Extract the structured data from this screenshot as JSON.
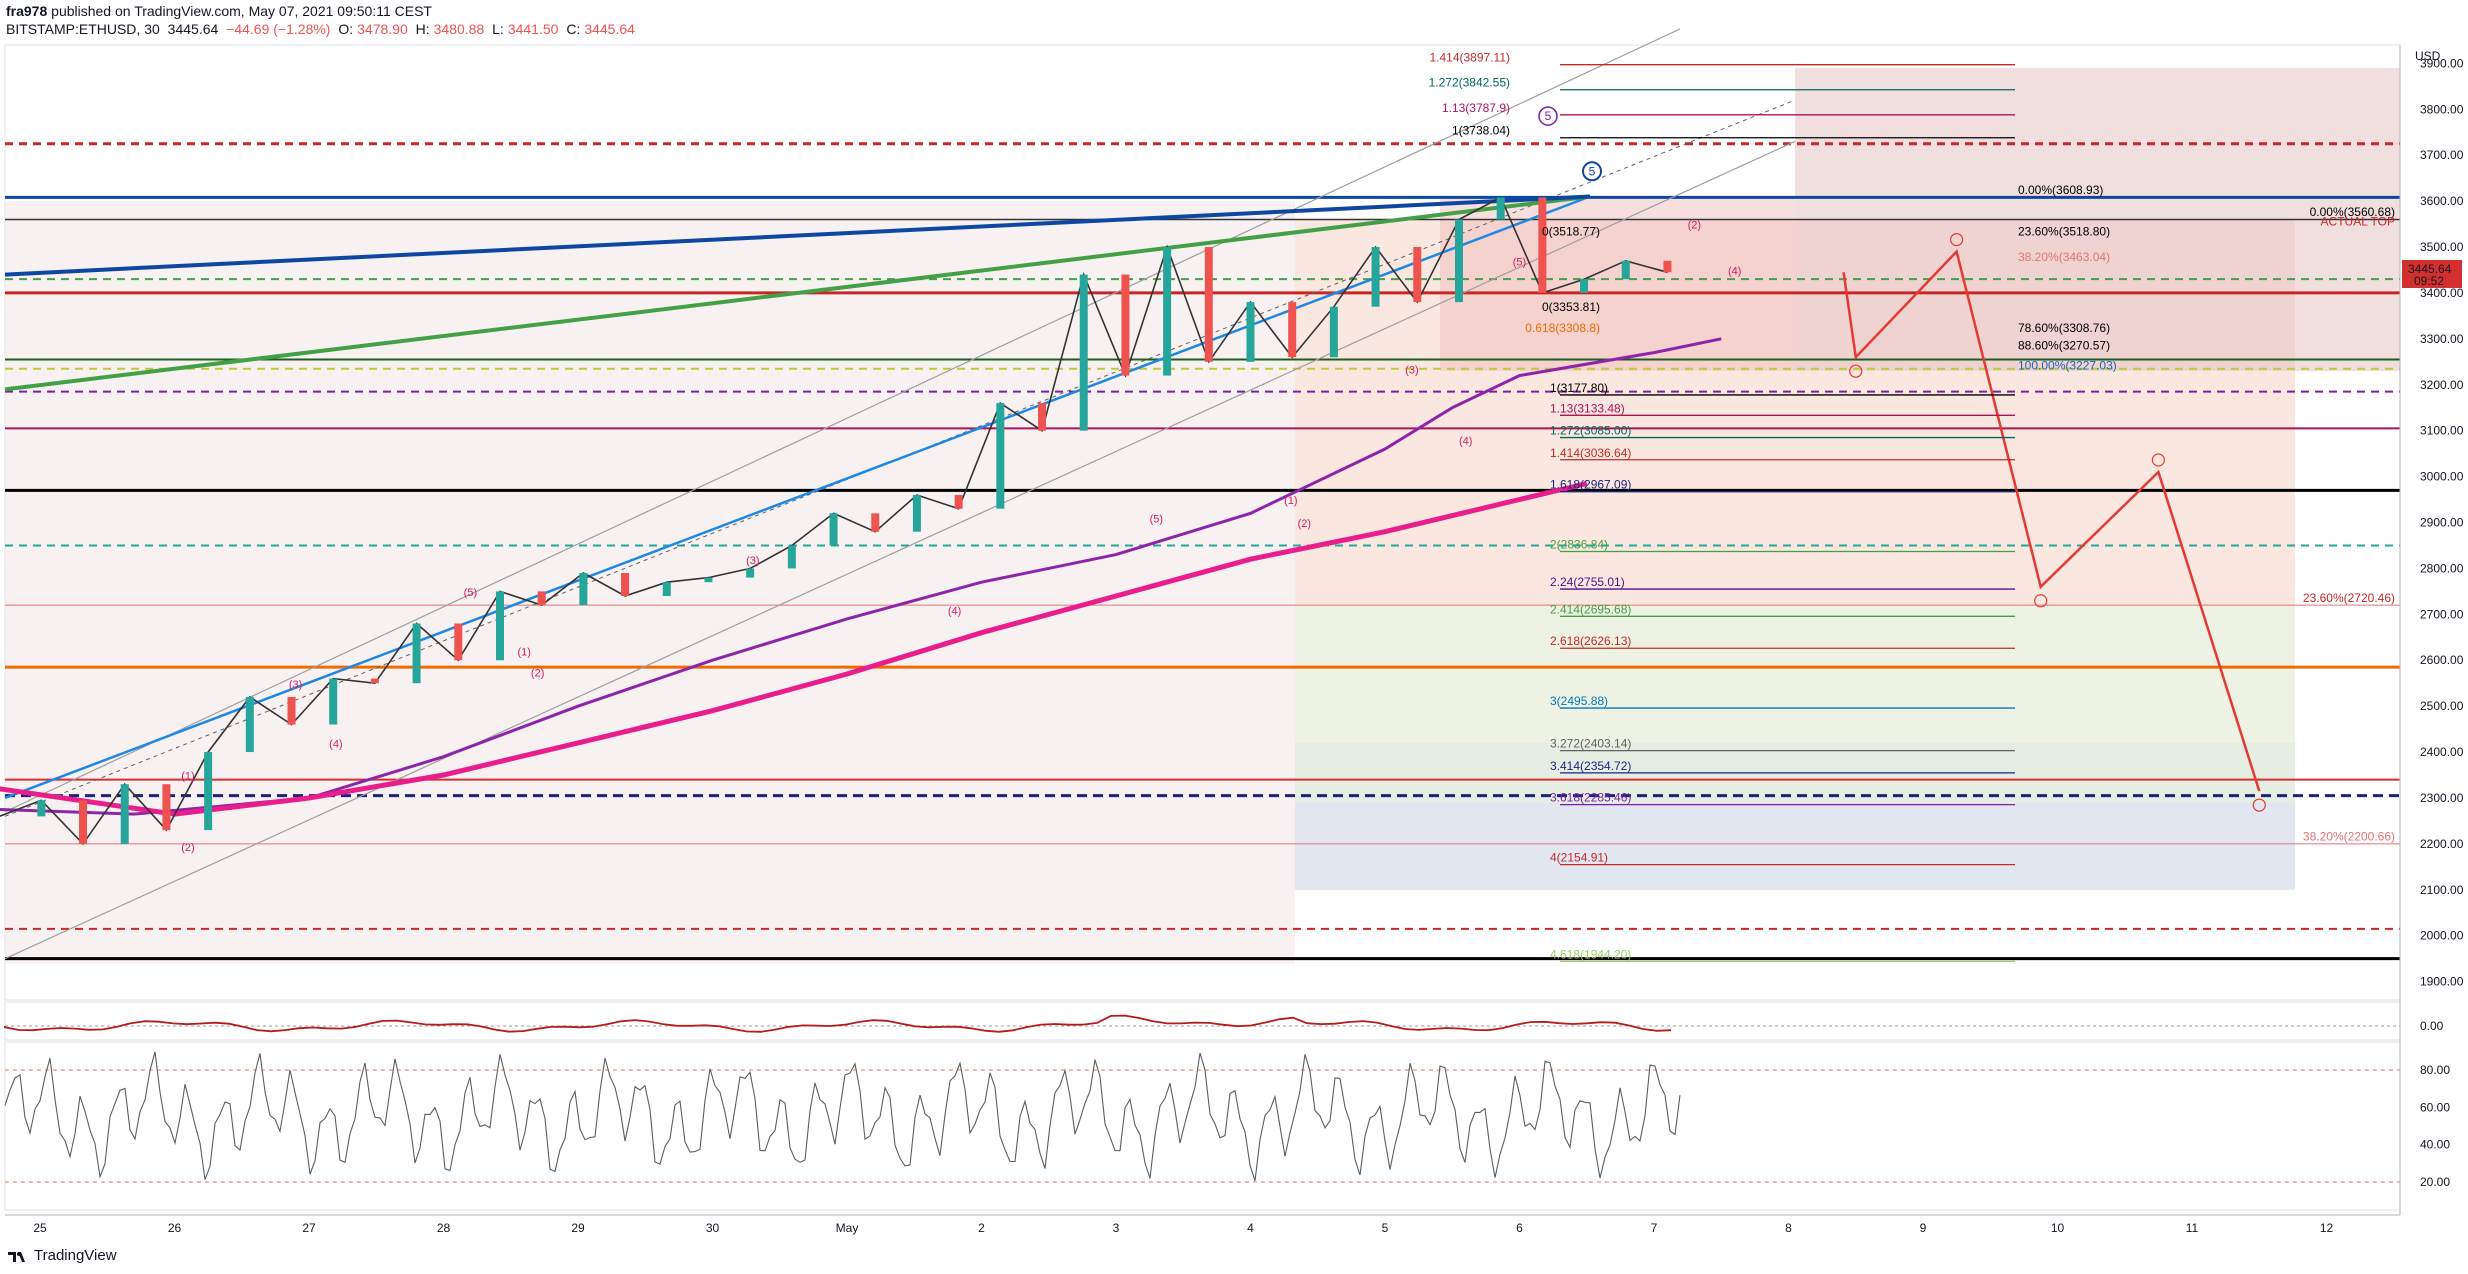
{
  "header": {
    "user": "fra978",
    "published": "published on TradingView.com, May 07, 2021 09:50:11 CEST",
    "symbol": "BITSTAMP:ETHUSD, 30",
    "last": "3445.64",
    "change": "−44.69 (−1.28%)",
    "o_label": "O:",
    "o_val": "3478.90",
    "h_label": "H:",
    "h_val": "3480.88",
    "l_label": "L:",
    "l_val": "3441.50",
    "c_label": "C:",
    "c_val": "3445.64"
  },
  "footer": {
    "logo_text": "TradingView"
  },
  "price_axis": {
    "currency": "USD",
    "current_price": "3445.64",
    "countdown": "09:52",
    "ticks": [
      "3900.00",
      "3800.00",
      "3700.00",
      "3600.00",
      "3500.00",
      "3400.00",
      "3300.00",
      "3200.00",
      "3100.00",
      "3000.00",
      "2900.00",
      "2800.00",
      "2700.00",
      "2600.00",
      "2500.00",
      "2400.00",
      "2300.00",
      "2200.00",
      "2100.00",
      "2000.00",
      "1900.00"
    ]
  },
  "osc_axis": {
    "macd_ticks": [
      "0.00"
    ],
    "rsi_ticks": [
      "80.00",
      "60.00",
      "40.00",
      "20.00"
    ]
  },
  "time_axis": {
    "labels": [
      "25",
      "26",
      "27",
      "28",
      "29",
      "30",
      "May",
      "2",
      "3",
      "4",
      "5",
      "6",
      "7",
      "8",
      "9",
      "10",
      "11",
      "12"
    ]
  },
  "colors": {
    "bull": "#26a69a",
    "bear": "#ef5350",
    "wave": "#d81b60",
    "price_label": "#d32f2f"
  },
  "chart_data": {
    "type": "line",
    "title": "",
    "series": [
      {
        "values": [
          2260,
          2295,
          2200,
          2330,
          2230,
          2400,
          2520,
          2460,
          2560,
          2550,
          2680,
          2600,
          2750,
          2720,
          2790,
          2740,
          2770,
          2780,
          2800,
          2850,
          2920,
          2880,
          2960,
          2930,
          3160,
          3100,
          3440,
          3220,
          3500,
          3250,
          3380,
          3260,
          3370,
          3500,
          3380,
          3560,
          3608,
          3400,
          3430,
          3470,
          3445
        ]
      }
    ],
    "y_range": [
      1860,
      3940
    ],
    "projection_path": [
      {
        "t": "May 7 09:50",
        "price": 3445
      },
      {
        "t": "May 7 12:00",
        "price": 3260
      },
      {
        "t": "May 8 06:00",
        "price": 3490
      },
      {
        "t": "May 8 21:00",
        "price": 2760
      },
      {
        "t": "May 9 18:00",
        "price": 3010
      },
      {
        "t": "May 10 12:00",
        "price": 2315
      }
    ],
    "fib_levels": [
      {
        "label": "1.414(3897.11)",
        "price": 3897.11,
        "color": "#c62828"
      },
      {
        "label": "1.272(3842.55)",
        "price": 3842.55,
        "color": "#00695c"
      },
      {
        "label": "1.13(3787.9)",
        "price": 3787.9,
        "color": "#ad1457"
      },
      {
        "label": "1(3738.04)",
        "price": 3738.04,
        "color": "#000000"
      },
      {
        "label": "0.00%(3608.93)",
        "price": 3608.93,
        "color": "#000000"
      },
      {
        "label": "0.00%(3560.68)",
        "price": 3560.68,
        "color": "#000000"
      },
      {
        "label": "ACTUAL TOP",
        "price": 3540,
        "color": "#c62828"
      },
      {
        "label": "23.60%(3518.80)",
        "price": 3518.8,
        "color": "#000000"
      },
      {
        "label": "0(3518.77)",
        "price": 3518.77,
        "color": "#000000"
      },
      {
        "label": "38.20%(3463.04)",
        "price": 3463.04,
        "color": "#e57373"
      },
      {
        "label": "0(3353.81)",
        "price": 3353.81,
        "color": "#000000"
      },
      {
        "label": "0.618(3308.8)",
        "price": 3308.8,
        "color": "#ef6c00"
      },
      {
        "label": "78.60%(3308.76)",
        "price": 3308.76,
        "color": "#000000"
      },
      {
        "label": "88.60%(3270.57)",
        "price": 3270.57,
        "color": "#000000"
      },
      {
        "label": "100.00%(3227.03)",
        "price": 3227.03,
        "color": "#1565c0"
      },
      {
        "label": "1(3177.80)",
        "price": 3177.8,
        "color": "#000000"
      },
      {
        "label": "1.13(3133.48)",
        "price": 3133.48,
        "color": "#ad1457"
      },
      {
        "label": "1.272(3085.00)",
        "price": 3085.0,
        "color": "#00695c"
      },
      {
        "label": "1.414(3036.64)",
        "price": 3036.64,
        "color": "#c62828"
      },
      {
        "label": "1.618(2967.09)",
        "price": 2967.09,
        "color": "#1a237e"
      },
      {
        "label": "2(2836.84)",
        "price": 2836.84,
        "color": "#43a047"
      },
      {
        "label": "2.24(2755.01)",
        "price": 2755.01,
        "color": "#4a148c"
      },
      {
        "label": "2.414(2695.68)",
        "price": 2695.68,
        "color": "#43a047"
      },
      {
        "label": "23.60%(2720.46)",
        "price": 2720.46,
        "color": "#c62828"
      },
      {
        "label": "2.618(2626.13)",
        "price": 2626.13,
        "color": "#c62828"
      },
      {
        "label": "3(2495.88)",
        "price": 2495.88,
        "color": "#0277bd"
      },
      {
        "label": "3.272(2403.14)",
        "price": 2403.14,
        "color": "#616161"
      },
      {
        "label": "3.414(2354.72)",
        "price": 2354.72,
        "color": "#1a237e"
      },
      {
        "label": "3.618(2285.46)",
        "price": 2285.46,
        "color": "#7b1fa2"
      },
      {
        "label": "38.20%(2200.66)",
        "price": 2200.66,
        "color": "#e57373"
      },
      {
        "label": "4(2154.91)",
        "price": 2154.91,
        "color": "#c62828"
      },
      {
        "label": "4.618(1944.20)",
        "price": 1944.2,
        "color": "#9ccc65"
      }
    ]
  }
}
